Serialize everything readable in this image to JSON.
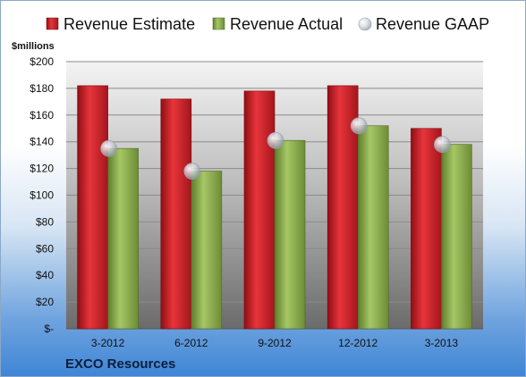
{
  "company": "EXCO Resources",
  "colors": {
    "estimate": "#d32027",
    "actual": "#8db04e",
    "gaap": "#c9cdd6"
  },
  "chart_data": {
    "type": "bar",
    "categories": [
      "3-2012",
      "6-2012",
      "9-2012",
      "12-2012",
      "3-2013"
    ],
    "series": [
      {
        "name": "Revenue Estimate",
        "kind": "bar",
        "values": [
          182,
          172,
          178,
          182,
          150
        ]
      },
      {
        "name": "Revenue Actual",
        "kind": "bar",
        "values": [
          135,
          118,
          141,
          152,
          138
        ]
      },
      {
        "name": "Revenue GAAP",
        "kind": "marker",
        "values": [
          135,
          118,
          141,
          152,
          138
        ]
      }
    ],
    "ylabel": "$millions",
    "ylim": [
      0,
      200
    ],
    "yticks": [
      "$-",
      "$20",
      "$40",
      "$60",
      "$80",
      "$100",
      "$120",
      "$140",
      "$160",
      "$180",
      "$200"
    ],
    "legend_position": "top",
    "grid": true
  }
}
